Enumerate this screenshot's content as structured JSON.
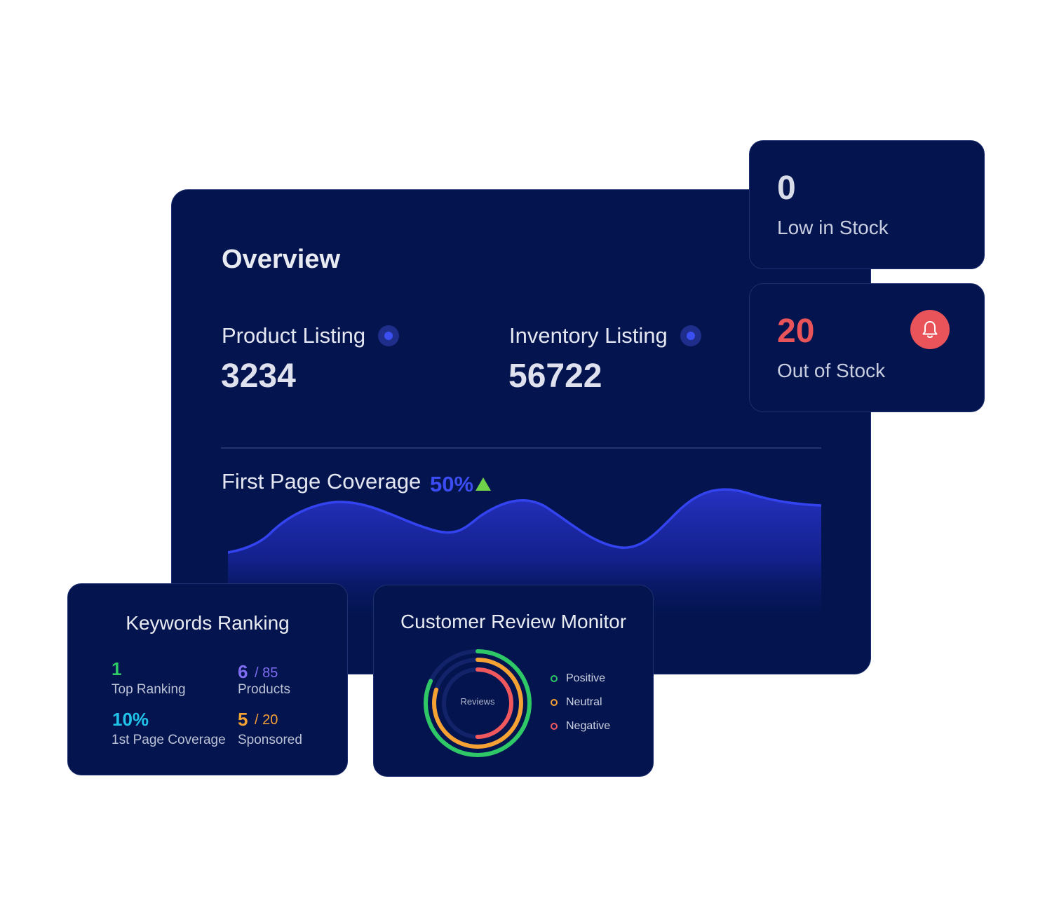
{
  "overview": {
    "title": "Overview",
    "product_listing": {
      "label": "Product Listing",
      "value": "3234"
    },
    "inventory_listing": {
      "label": "Inventory Listing",
      "value": "56722"
    },
    "coverage": {
      "label": "First Page Coverage",
      "value": "50%",
      "trend": "up",
      "trend_color": "#6fd04a",
      "value_color": "#3a4cf2"
    }
  },
  "stock": {
    "low": {
      "value": "0",
      "label": "Low in Stock",
      "value_color": "#d8dbe8"
    },
    "out": {
      "value": "20",
      "label": "Out of Stock",
      "value_color": "#e8545a",
      "icon": "bell-icon"
    }
  },
  "keywords": {
    "title": "Keywords Ranking",
    "items": [
      {
        "value": "1",
        "label": "Top Ranking",
        "color": "#2ec867"
      },
      {
        "value": "6",
        "suffix": "/ 85",
        "label": "Products",
        "color": "#7f6df2"
      },
      {
        "value": "10%",
        "label": "1st Page Coverage",
        "color": "#1fc4e8"
      },
      {
        "value": "5",
        "suffix": "/ 20",
        "label": "Sponsored",
        "color": "#f5a134"
      }
    ]
  },
  "reviews": {
    "title": "Customer Review Monitor",
    "center_label": "Reviews",
    "legend": [
      {
        "label": "Positive",
        "color": "#2ec867"
      },
      {
        "label": "Neutral",
        "color": "#f5a134"
      },
      {
        "label": "Negative",
        "color": "#f0585e"
      }
    ],
    "rings": [
      {
        "name": "Positive",
        "fraction": 0.82,
        "color": "#2ec867"
      },
      {
        "name": "Neutral",
        "fraction": 0.8,
        "color": "#f5a134"
      },
      {
        "name": "Negative",
        "fraction": 0.5,
        "color": "#f0585e"
      }
    ]
  }
}
